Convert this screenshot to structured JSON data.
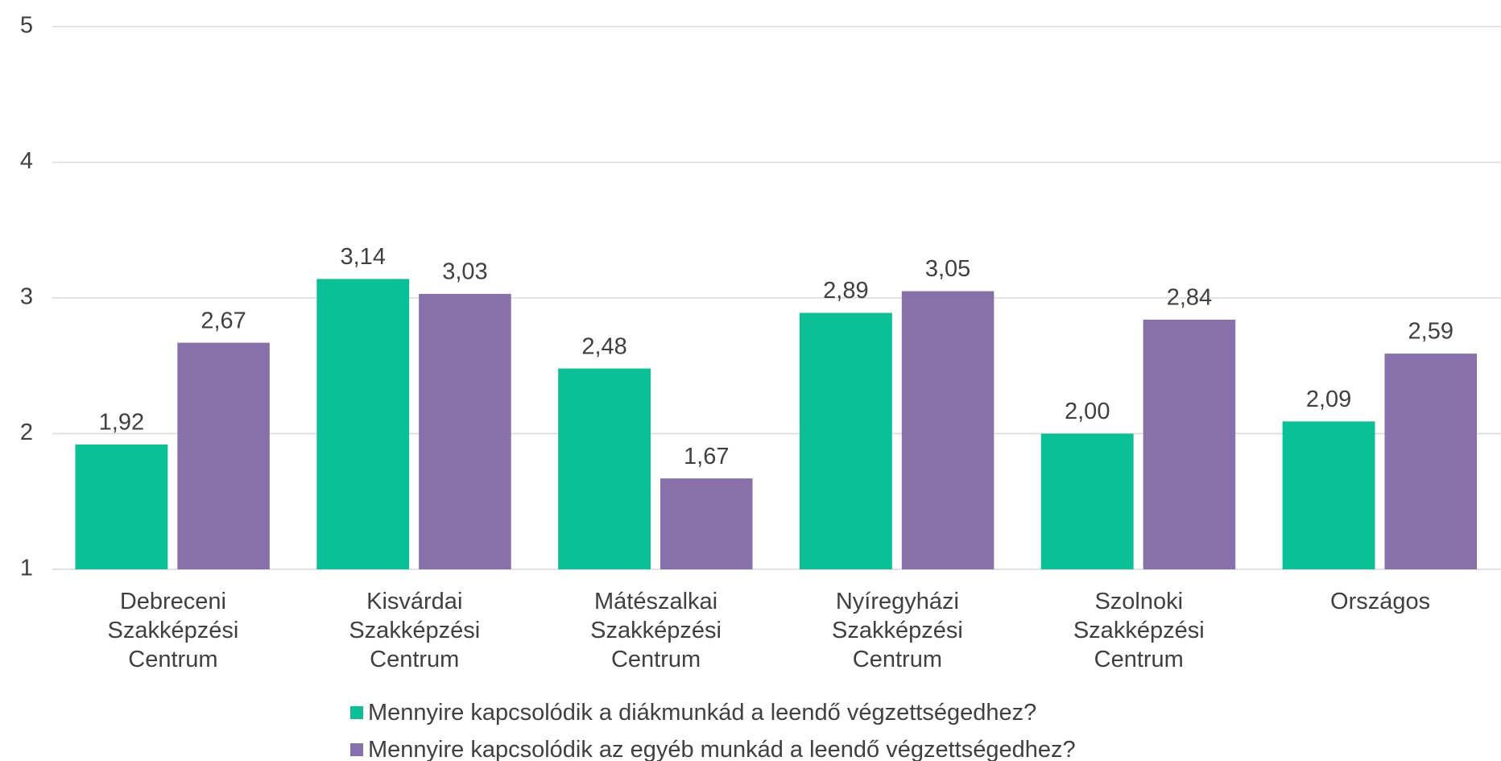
{
  "chart_data": {
    "type": "bar",
    "categories": [
      "Debreceni Szakképzési Centrum",
      "Kisvárdai Szakképzési Centrum",
      "Mátészalkai Szakképzési Centrum",
      "Nyíregyházi Szakképzési Centrum",
      "Szolnoki Szakképzési Centrum",
      "Országos"
    ],
    "series": [
      {
        "name": "Mennyire kapcsolódik a diákmunkád a leendő végzettségedhez?",
        "color": "#0bbf96",
        "values": [
          1.92,
          3.14,
          2.48,
          2.89,
          2.0,
          2.09
        ],
        "value_labels": [
          "1,92",
          "3,14",
          "2,48",
          "2,89",
          "2,00",
          "2,09"
        ]
      },
      {
        "name": "Mennyire kapcsolódik az egyéb munkád a leendő végzettségedhez?",
        "color": "#8870aa",
        "values": [
          2.67,
          3.03,
          1.67,
          3.05,
          2.84,
          2.59
        ],
        "value_labels": [
          "2,67",
          "3,03",
          "1,67",
          "3,05",
          "2,84",
          "2,59"
        ]
      }
    ],
    "ylim": [
      1,
      5
    ],
    "yticks": [
      1,
      2,
      3,
      4,
      5
    ],
    "grid": true,
    "legend": "bottom"
  }
}
